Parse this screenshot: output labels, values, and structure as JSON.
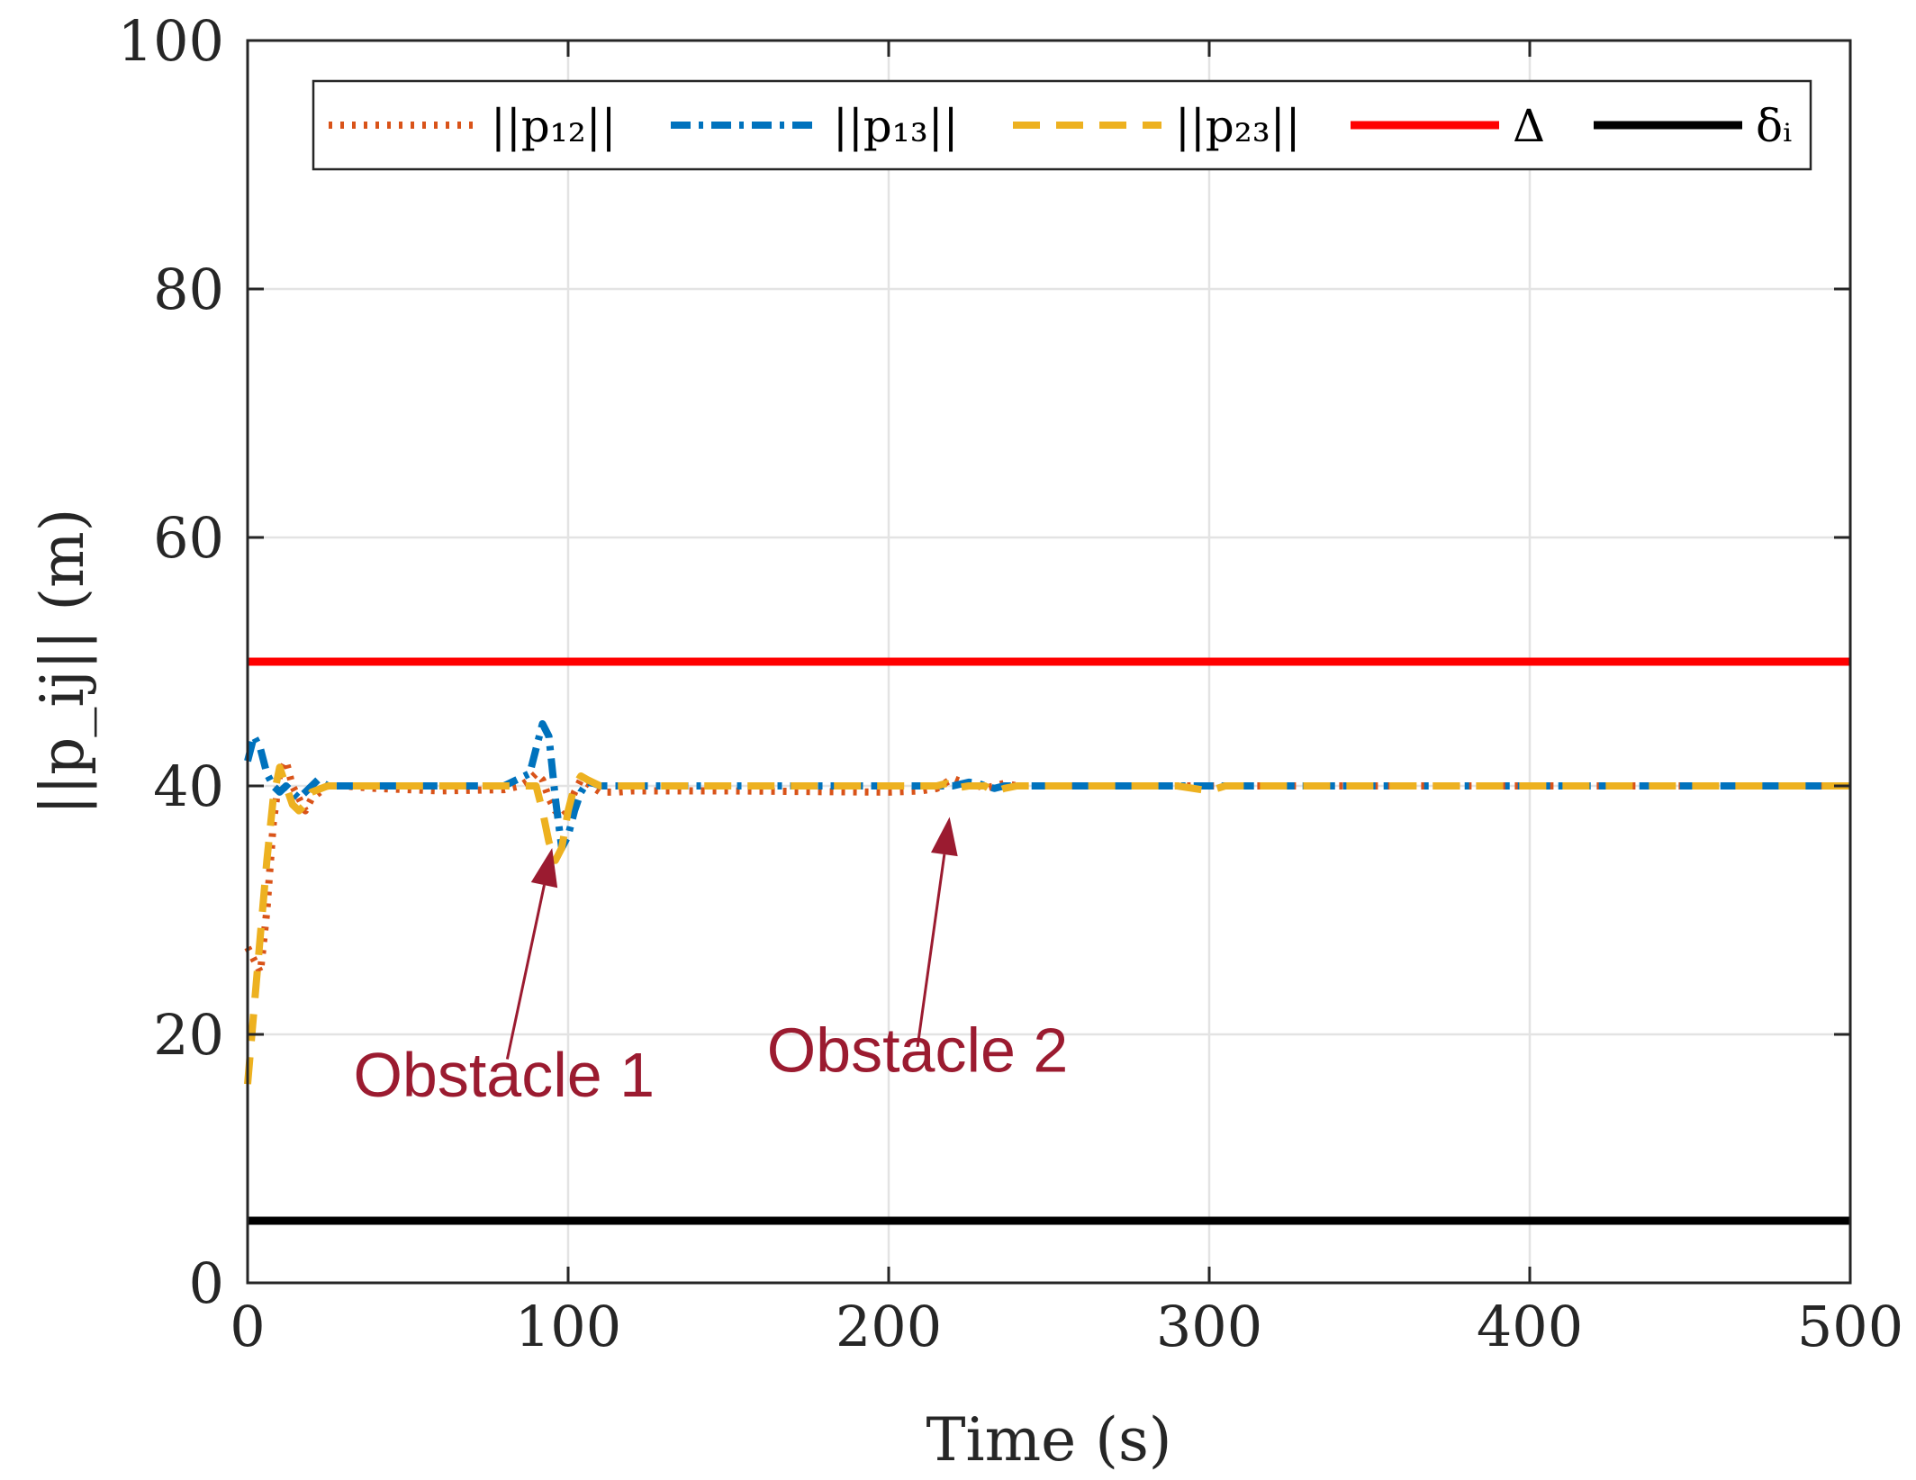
{
  "chart_data": {
    "type": "line",
    "xlabel": "Time (s)",
    "ylabel": "||p_ij|| (m)",
    "xlim": [
      0,
      500
    ],
    "ylim": [
      0,
      100
    ],
    "xticks": [
      0,
      100,
      200,
      300,
      400,
      500
    ],
    "yticks": [
      0,
      20,
      40,
      60,
      80,
      100
    ],
    "xtick_labels": [
      "0",
      "100",
      "200",
      "300",
      "400",
      "500"
    ],
    "ytick_labels": [
      "0",
      "20",
      "40",
      "60",
      "80",
      "100"
    ],
    "grid": true,
    "legend_position": "top",
    "series": [
      {
        "name": "||p12||",
        "legend_label": "||p₁₂||",
        "color": "#d95319",
        "style": "dotted",
        "x": [
          0,
          2,
          4,
          6,
          8,
          10,
          12,
          14,
          16,
          18,
          20,
          25,
          30,
          40,
          60,
          80,
          85,
          88,
          90,
          92,
          94,
          96,
          98,
          100,
          102,
          104,
          106,
          110,
          115,
          120,
          150,
          200,
          210,
          215,
          218,
          220,
          222,
          225,
          228,
          230,
          233,
          236,
          240,
          250,
          300,
          350,
          400,
          450,
          500
        ],
        "y": [
          27,
          26,
          25,
          30,
          37,
          41,
          42,
          40,
          39,
          38,
          39,
          40,
          40,
          39.8,
          39.6,
          39.7,
          40,
          40.5,
          41,
          40.5,
          39,
          38,
          37.5,
          38,
          39.5,
          40.5,
          40.2,
          39.5,
          39.5,
          39.6,
          39.6,
          39.5,
          39.6,
          39.8,
          40.3,
          40.6,
          40.4,
          40.2,
          40,
          39.8,
          40,
          40.2,
          40,
          40,
          40,
          40,
          40,
          40,
          40
        ]
      },
      {
        "name": "||p13||",
        "legend_label": "||p₁₃||",
        "color": "#0072bd",
        "style": "dashdot",
        "x": [
          0,
          2,
          4,
          6,
          8,
          10,
          12,
          14,
          16,
          18,
          20,
          22,
          25,
          30,
          40,
          60,
          80,
          88,
          90,
          92,
          94,
          96,
          98,
          100,
          102,
          104,
          106,
          108,
          110,
          115,
          120,
          150,
          200,
          220,
          225,
          228,
          230,
          233,
          236,
          240,
          250,
          300,
          350,
          400,
          450,
          500
        ],
        "y": [
          42,
          44,
          43,
          41,
          40,
          39.5,
          40,
          39.5,
          39,
          39.5,
          40,
          40.5,
          40,
          40,
          40,
          40,
          40,
          41,
          43,
          45,
          44,
          39,
          35,
          36,
          38,
          39.5,
          40.3,
          40.2,
          40,
          40,
          40,
          40,
          40,
          40,
          40.3,
          40.2,
          40,
          39.8,
          40,
          40,
          40,
          40,
          40,
          40,
          40,
          40
        ]
      },
      {
        "name": "||p23||",
        "legend_label": "||p₂₃||",
        "color": "#edb120",
        "style": "dashed",
        "x": [
          0,
          2,
          4,
          6,
          8,
          10,
          12,
          14,
          16,
          18,
          20,
          25,
          30,
          40,
          60,
          80,
          90,
          92,
          94,
          96,
          98,
          100,
          102,
          104,
          106,
          110,
          115,
          120,
          150,
          200,
          215,
          218,
          220,
          225,
          230,
          233,
          236,
          240,
          250,
          290,
          300,
          305,
          310,
          350,
          400,
          450,
          500
        ],
        "y": [
          16,
          22,
          28,
          34,
          39,
          41.5,
          40,
          38.5,
          38,
          38.5,
          39.5,
          40,
          40,
          40,
          40,
          40,
          40,
          38,
          35.5,
          34,
          35,
          38,
          40,
          40.8,
          40.5,
          40,
          40,
          40,
          40,
          40,
          40,
          40.2,
          39.8,
          40,
          40,
          39.5,
          39.8,
          40,
          40,
          40,
          39.6,
          40,
          40,
          40,
          40,
          40,
          40
        ]
      },
      {
        "name": "Δ",
        "legend_label": "Δ",
        "color": "#ff0000",
        "style": "solid",
        "x": [
          0,
          500
        ],
        "y": [
          50,
          50
        ]
      },
      {
        "name": "δi",
        "legend_label": "δᵢ",
        "color": "#000000",
        "style": "solid",
        "x": [
          0,
          500
        ],
        "y": [
          5,
          5
        ]
      }
    ],
    "annotations": [
      {
        "text": "Obstacle 1",
        "text_at": [
          80,
          15
        ],
        "arrow_from": [
          81,
          18
        ],
        "arrow_to": [
          95,
          35
        ]
      },
      {
        "text": "Obstacle 2",
        "text_at": [
          209,
          17
        ],
        "arrow_from": [
          209,
          19
        ],
        "arrow_to": [
          219,
          37.5
        ]
      }
    ]
  }
}
